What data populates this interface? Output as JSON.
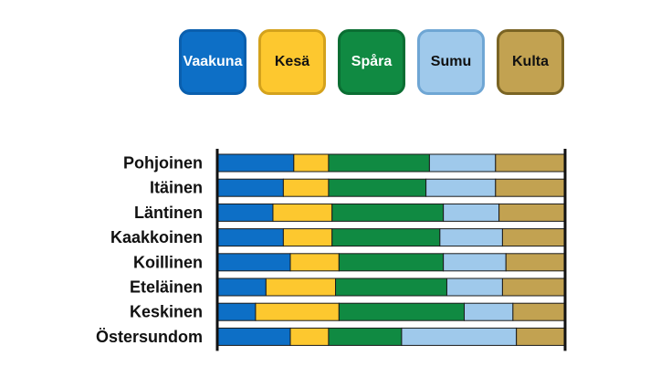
{
  "chart_data": {
    "type": "bar",
    "orientation": "horizontal",
    "stacked": true,
    "percent": true,
    "categories": [
      "Pohjoinen",
      "Itäinen",
      "Läntinen",
      "Kaakkoinen",
      "Koillinen",
      "Eteläinen",
      "Keskinen",
      "Östersundom"
    ],
    "series": [
      {
        "name": "Vaakuna",
        "color": "#0d6fc6",
        "values": [
          22,
          19,
          16,
          19,
          21,
          14,
          11,
          21
        ]
      },
      {
        "name": "Kesä",
        "color": "#fdc82f",
        "values": [
          10,
          13,
          17,
          14,
          14,
          20,
          24,
          11
        ]
      },
      {
        "name": "Spåra",
        "color": "#108a42",
        "values": [
          29,
          28,
          32,
          31,
          30,
          32,
          36,
          21
        ]
      },
      {
        "name": "Sumu",
        "color": "#9fc9eb",
        "values": [
          19,
          20,
          16,
          18,
          18,
          16,
          14,
          33
        ]
      },
      {
        "name": "Kulta",
        "color": "#c2a251",
        "values": [
          20,
          20,
          19,
          18,
          17,
          18,
          15,
          14
        ]
      }
    ],
    "legend": "top",
    "grid": false,
    "xlim": [
      0,
      100
    ]
  },
  "legend_style": {
    "Vaakuna": {
      "border": "#0a5fae",
      "text": "#ffffff"
    },
    "Kesä": {
      "border": "#d4a21c",
      "text": "#111111"
    },
    "Spåra": {
      "border": "#0b6e33",
      "text": "#ffffff"
    },
    "Sumu": {
      "border": "#6fa6d4",
      "text": "#111111"
    },
    "Kulta": {
      "border": "#7a6424",
      "text": "#111111"
    }
  }
}
